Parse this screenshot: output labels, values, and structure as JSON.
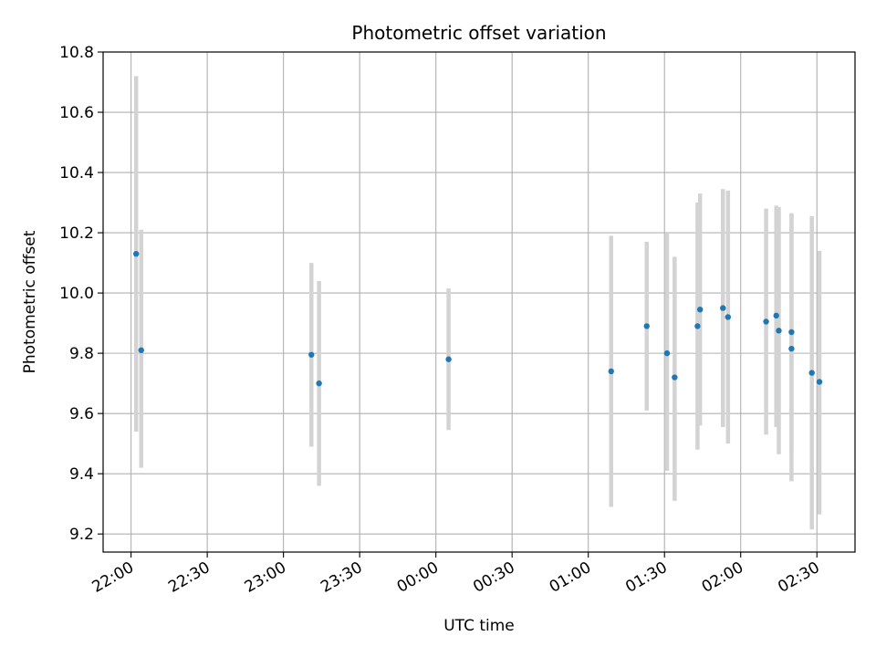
{
  "chart_data": {
    "type": "scatter",
    "title": "Photometric offset variation",
    "xlabel": "UTC time",
    "ylabel": "Photometric offset",
    "x_ticks": [
      "22:00",
      "22:30",
      "23:00",
      "23:30",
      "00:00",
      "00:30",
      "01:00",
      "01:30",
      "02:00",
      "02:30"
    ],
    "y_ticks": [
      "9.2",
      "9.4",
      "9.6",
      "9.8",
      "10.0",
      "10.2",
      "10.4",
      "10.6",
      "10.8"
    ],
    "xlim": [
      "21:49",
      "02:45"
    ],
    "ylim": [
      9.14,
      10.8
    ],
    "grid": true,
    "point_color": "#1f77b4",
    "errorbar_color": "#d3d3d3",
    "points": [
      {
        "t": "22:02",
        "y": 10.13,
        "ylow": 9.54,
        "yhigh": 10.72
      },
      {
        "t": "22:04",
        "y": 9.81,
        "ylow": 9.42,
        "yhigh": 10.21
      },
      {
        "t": "23:11",
        "y": 9.795,
        "ylow": 9.49,
        "yhigh": 10.1
      },
      {
        "t": "23:14",
        "y": 9.7,
        "ylow": 9.36,
        "yhigh": 10.04
      },
      {
        "t": "00:05",
        "y": 9.78,
        "ylow": 9.545,
        "yhigh": 10.015
      },
      {
        "t": "01:09",
        "y": 9.74,
        "ylow": 9.29,
        "yhigh": 10.19
      },
      {
        "t": "01:23",
        "y": 9.89,
        "ylow": 9.61,
        "yhigh": 10.17
      },
      {
        "t": "01:31",
        "y": 9.8,
        "ylow": 9.41,
        "yhigh": 10.2
      },
      {
        "t": "01:34",
        "y": 9.72,
        "ylow": 9.31,
        "yhigh": 10.12
      },
      {
        "t": "01:43",
        "y": 9.89,
        "ylow": 9.48,
        "yhigh": 10.3
      },
      {
        "t": "01:44",
        "y": 9.945,
        "ylow": 9.56,
        "yhigh": 10.33
      },
      {
        "t": "01:53",
        "y": 9.95,
        "ylow": 9.555,
        "yhigh": 10.345
      },
      {
        "t": "01:55",
        "y": 9.92,
        "ylow": 9.5,
        "yhigh": 10.34
      },
      {
        "t": "02:10",
        "y": 9.905,
        "ylow": 9.53,
        "yhigh": 10.28
      },
      {
        "t": "02:14",
        "y": 9.925,
        "ylow": 9.555,
        "yhigh": 10.29
      },
      {
        "t": "02:15",
        "y": 9.875,
        "ylow": 9.465,
        "yhigh": 10.285
      },
      {
        "t": "02:20",
        "y": 9.87,
        "ylow": 9.475,
        "yhigh": 10.26
      },
      {
        "t": "02:20",
        "y": 9.815,
        "ylow": 9.375,
        "yhigh": 10.265
      },
      {
        "t": "02:28",
        "y": 9.735,
        "ylow": 9.215,
        "yhigh": 10.255
      },
      {
        "t": "02:31",
        "y": 9.705,
        "ylow": 9.265,
        "yhigh": 10.14
      }
    ]
  }
}
